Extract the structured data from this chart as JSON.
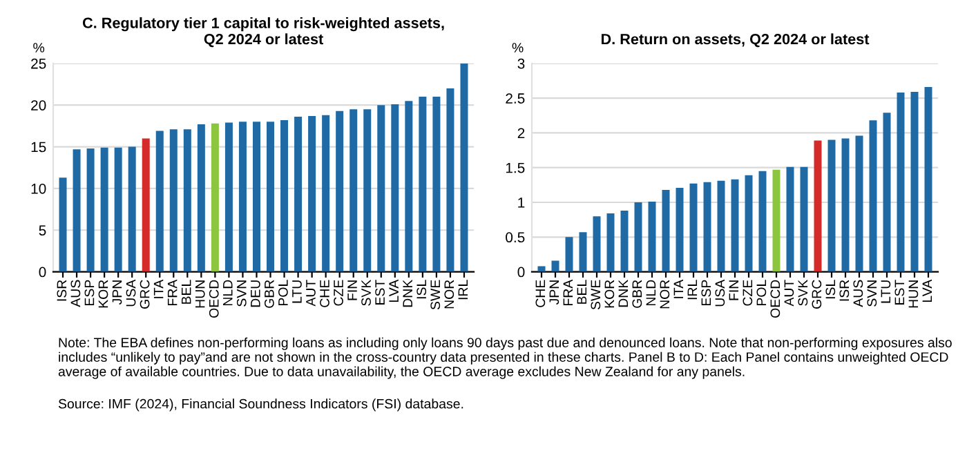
{
  "chart_data": [
    {
      "type": "bar",
      "title": "C. Regulatory tier 1 capital to risk-weighted assets,\nQ2 2024 or latest",
      "ylabel": "%",
      "categories": [
        "ISR",
        "AUS",
        "ESP",
        "KOR",
        "JPN",
        "USA",
        "GRC",
        "ITA",
        "FRA",
        "BEL",
        "HUN",
        "OECD",
        "NLD",
        "SVN",
        "DEU",
        "GBR",
        "POL",
        "LTU",
        "AUT",
        "CHE",
        "CZE",
        "FIN",
        "SVK",
        "EST",
        "LVA",
        "DNK",
        "ISL",
        "SWE",
        "NOR",
        "IRL"
      ],
      "values": [
        11.3,
        14.7,
        14.8,
        14.9,
        14.9,
        15.0,
        16.0,
        16.9,
        17.1,
        17.1,
        17.7,
        17.8,
        17.9,
        18.0,
        18.0,
        18.0,
        18.2,
        18.6,
        18.7,
        18.8,
        19.3,
        19.5,
        19.5,
        20.0,
        20.1,
        20.5,
        21.0,
        21.0,
        22.0,
        25.0
      ],
      "colors": [
        "#1f6aa5",
        "#1f6aa5",
        "#1f6aa5",
        "#1f6aa5",
        "#1f6aa5",
        "#1f6aa5",
        "#d42a2a",
        "#1f6aa5",
        "#1f6aa5",
        "#1f6aa5",
        "#1f6aa5",
        "#8cc63f",
        "#1f6aa5",
        "#1f6aa5",
        "#1f6aa5",
        "#1f6aa5",
        "#1f6aa5",
        "#1f6aa5",
        "#1f6aa5",
        "#1f6aa5",
        "#1f6aa5",
        "#1f6aa5",
        "#1f6aa5",
        "#1f6aa5",
        "#1f6aa5",
        "#1f6aa5",
        "#1f6aa5",
        "#1f6aa5",
        "#1f6aa5",
        "#1f6aa5"
      ],
      "ylim": [
        0,
        25
      ],
      "yticks": [
        0,
        5,
        10,
        15,
        20,
        25
      ],
      "grid": "y",
      "legend": false
    },
    {
      "type": "bar",
      "title": "D. Return on assets, Q2 2024 or latest",
      "ylabel": "%",
      "categories": [
        "CHE",
        "JPN",
        "FRA",
        "BEL",
        "SWE",
        "KOR",
        "DNK",
        "GBR",
        "NLD",
        "NOR",
        "ITA",
        "IRL",
        "ESP",
        "USA",
        "FIN",
        "CZE",
        "POL",
        "OECD",
        "AUT",
        "SVK",
        "GRC",
        "ISL",
        "ISR",
        "AUS",
        "SVN",
        "LTU",
        "EST",
        "HUN",
        "LVA"
      ],
      "values": [
        0.08,
        0.16,
        0.5,
        0.57,
        0.8,
        0.84,
        0.88,
        1.0,
        1.01,
        1.18,
        1.21,
        1.27,
        1.29,
        1.31,
        1.33,
        1.39,
        1.45,
        1.47,
        1.51,
        1.51,
        1.89,
        1.9,
        1.92,
        1.96,
        2.18,
        2.29,
        2.58,
        2.59,
        2.66
      ],
      "colors": [
        "#1f6aa5",
        "#1f6aa5",
        "#1f6aa5",
        "#1f6aa5",
        "#1f6aa5",
        "#1f6aa5",
        "#1f6aa5",
        "#1f6aa5",
        "#1f6aa5",
        "#1f6aa5",
        "#1f6aa5",
        "#1f6aa5",
        "#1f6aa5",
        "#1f6aa5",
        "#1f6aa5",
        "#1f6aa5",
        "#1f6aa5",
        "#8cc63f",
        "#1f6aa5",
        "#1f6aa5",
        "#d42a2a",
        "#1f6aa5",
        "#1f6aa5",
        "#1f6aa5",
        "#1f6aa5",
        "#1f6aa5",
        "#1f6aa5",
        "#1f6aa5",
        "#1f6aa5"
      ],
      "ylim": [
        0,
        3
      ],
      "yticks": [
        0,
        0.5,
        1,
        1.5,
        2,
        2.5,
        3
      ],
      "grid": "y",
      "legend": false,
      "annotations": [
        "Note: The EBA defines non-performing loans as including only loans 90 days past due and denounced loans. Note that non-performing exposures also includes “unlikely to pay”and are not shown in the cross-country data presented in these charts. Panel B to D: Each Panel contains unweighted OECD average of available countries. Due to data unavailability, the OECD average excludes New Zealand for any panels.",
        "Source: IMF (2024), Financial Soundness Indicators (FSI) database."
      ]
    }
  ]
}
